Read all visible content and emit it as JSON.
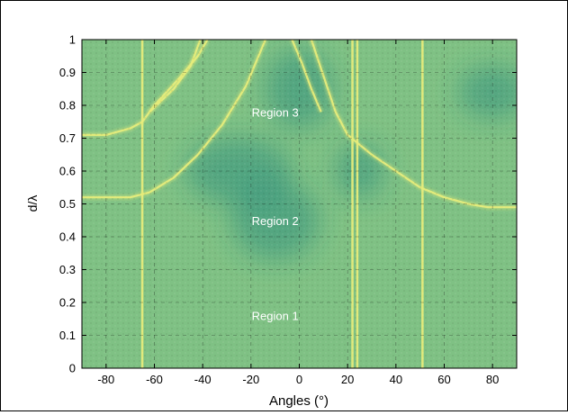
{
  "chart_data": {
    "type": "heatmap",
    "title": "",
    "xlabel": "Angles (°)",
    "ylabel": "d/λ",
    "xlim": [
      -90,
      90
    ],
    "ylim": [
      0,
      1
    ],
    "x_ticks": [
      -80,
      -60,
      -40,
      -20,
      0,
      20,
      40,
      60,
      80
    ],
    "y_ticks": [
      0,
      0.1,
      0.2,
      0.3,
      0.4,
      0.5,
      0.6,
      0.7,
      0.8,
      0.9,
      1
    ],
    "grid": true,
    "colors": {
      "background": "#7fc184",
      "dark": "#2f8f7e",
      "bright": "#e6ec7a"
    },
    "vertical_bright_lines_deg": [
      -65,
      22,
      24,
      51
    ],
    "bright_curves": [
      {
        "points": [
          [
            -90,
            0.71
          ],
          [
            -80,
            0.71
          ],
          [
            -70,
            0.73
          ],
          [
            -65,
            0.75
          ],
          [
            -60,
            0.8
          ],
          [
            -50,
            0.88
          ],
          [
            -42,
            0.95
          ],
          [
            -38,
            1.0
          ]
        ]
      },
      {
        "points": [
          [
            -90,
            0.52
          ],
          [
            -80,
            0.52
          ],
          [
            -70,
            0.52
          ],
          [
            -62,
            0.535
          ],
          [
            -52,
            0.58
          ],
          [
            -42,
            0.65
          ],
          [
            -32,
            0.74
          ],
          [
            -22,
            0.86
          ],
          [
            -14,
            1.0
          ]
        ]
      },
      {
        "points": [
          [
            -62,
            0.78
          ],
          [
            -52,
            0.85
          ],
          [
            -45,
            0.92
          ],
          [
            -41,
            1.0
          ]
        ]
      },
      {
        "points": [
          [
            5,
            1.0
          ],
          [
            10,
            0.89
          ],
          [
            15,
            0.78
          ],
          [
            20,
            0.71
          ],
          [
            30,
            0.65
          ],
          [
            40,
            0.6
          ],
          [
            50,
            0.55
          ],
          [
            60,
            0.52
          ],
          [
            70,
            0.5
          ],
          [
            78,
            0.49
          ],
          [
            90,
            0.49
          ]
        ]
      },
      {
        "points": [
          [
            -3,
            1.0
          ],
          [
            1,
            0.93
          ],
          [
            5,
            0.85
          ],
          [
            9,
            0.78
          ]
        ]
      }
    ],
    "dark_regions": [
      {
        "x": -25,
        "y": 0.6,
        "rx": 22,
        "ry": 0.1
      },
      {
        "x": 0,
        "y": 0.85,
        "rx": 14,
        "ry": 0.12
      },
      {
        "x": 80,
        "y": 0.84,
        "rx": 14,
        "ry": 0.08
      },
      {
        "x": -10,
        "y": 0.45,
        "rx": 18,
        "ry": 0.12
      },
      {
        "x": 25,
        "y": 0.6,
        "rx": 10,
        "ry": 0.08
      }
    ],
    "annotations": [
      {
        "text": "Region 3",
        "x": -10,
        "y": 0.78
      },
      {
        "text": "Region 2",
        "x": -10,
        "y": 0.45
      },
      {
        "text": "Region 1",
        "x": -10,
        "y": 0.16
      }
    ]
  }
}
